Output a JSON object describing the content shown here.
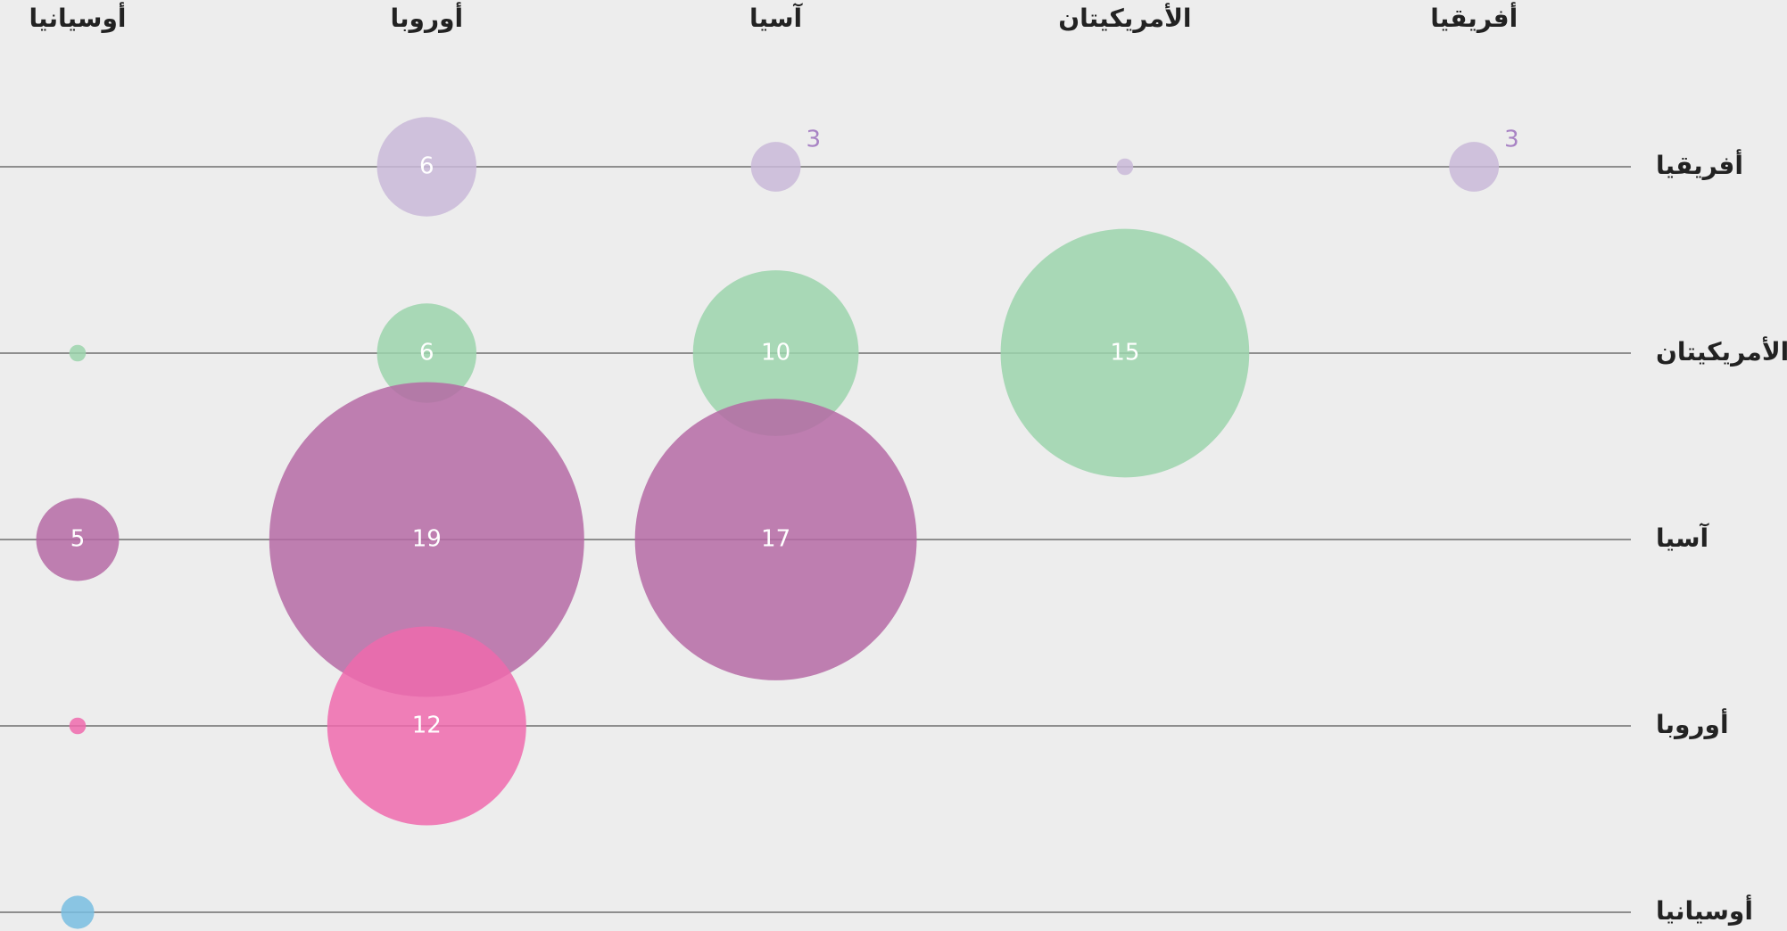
{
  "chart_data": {
    "type": "bubble-matrix",
    "categories": [
      "أوسيانيا",
      "أوروبا",
      "آسيا",
      "الأمريكيتان",
      "أفريقيا"
    ],
    "series": [
      {
        "name": "أفريقيا",
        "color": "#c9b8d8",
        "values": [
          null,
          6,
          3,
          1,
          3
        ]
      },
      {
        "name": "الأمريكيتان",
        "color": "#9bd4ab",
        "values": [
          1,
          6,
          10,
          15,
          null
        ]
      },
      {
        "name": "آسيا",
        "color": "#b56aa5",
        "values": [
          5,
          19,
          17,
          null,
          null
        ]
      },
      {
        "name": "أوروبا",
        "color": "#ef6aad",
        "values": [
          1,
          12,
          null,
          null,
          null
        ]
      },
      {
        "name": "أوسيانيا",
        "color": "#78bde0",
        "values": [
          2,
          null,
          null,
          null,
          null
        ]
      }
    ]
  }
}
